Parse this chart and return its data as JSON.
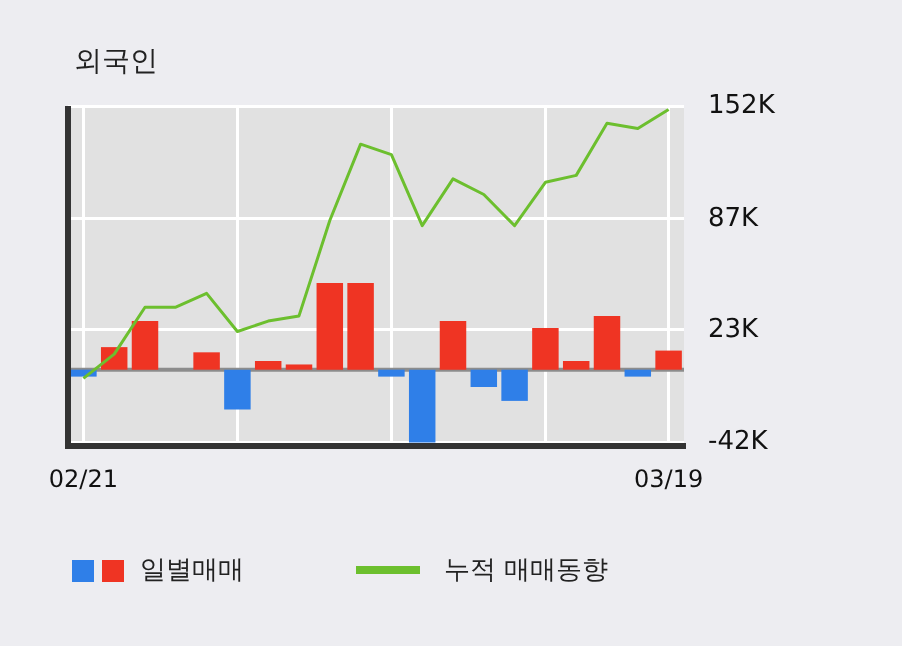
{
  "chart_data": {
    "type": "bar",
    "title": "외국인",
    "categories": [
      "02/21",
      null,
      null,
      null,
      null,
      null,
      null,
      null,
      null,
      null,
      null,
      null,
      null,
      null,
      null,
      null,
      null,
      null,
      null,
      "03/19"
    ],
    "series": [
      {
        "name": "일별매매",
        "colors": [
          "#2f7fe8",
          "#ef3423",
          "#ef3423",
          "#ef3423",
          "#ef3423",
          "#2f7fe8",
          "#ef3423",
          "#ef3423",
          "#ef3423",
          "#ef3423",
          "#2f7fe8",
          "#2f7fe8",
          "#ef3423",
          "#2f7fe8",
          "#2f7fe8",
          "#ef3423",
          "#ef3423",
          "#ef3423",
          "#2f7fe8",
          "#ef3423"
        ],
        "values": [
          -4,
          13,
          28,
          0,
          10,
          -23,
          5,
          3,
          50,
          50,
          -4,
          -42,
          28,
          -10,
          -18,
          24,
          5,
          31,
          -4,
          11
        ]
      },
      {
        "name": "누적 매매동향",
        "type": "line",
        "color": "#6cbf2e",
        "values": [
          -5,
          9,
          36,
          36,
          44,
          22,
          28,
          31,
          86,
          130,
          124,
          83,
          110,
          101,
          83,
          108,
          112,
          142,
          139,
          150
        ]
      }
    ],
    "ylim": [
      -44,
      152
    ],
    "yticks": [
      {
        "value": -42,
        "label": "-42K"
      },
      {
        "value": 23,
        "label": "23K"
      },
      {
        "value": 87,
        "label": "87K"
      },
      {
        "value": 152,
        "label": "152K"
      }
    ],
    "ref_lines": [
      {
        "axis": "y",
        "value": 0,
        "color": "#8c8c8c"
      }
    ],
    "grid": true,
    "legend": "bottom",
    "marker": "none"
  }
}
